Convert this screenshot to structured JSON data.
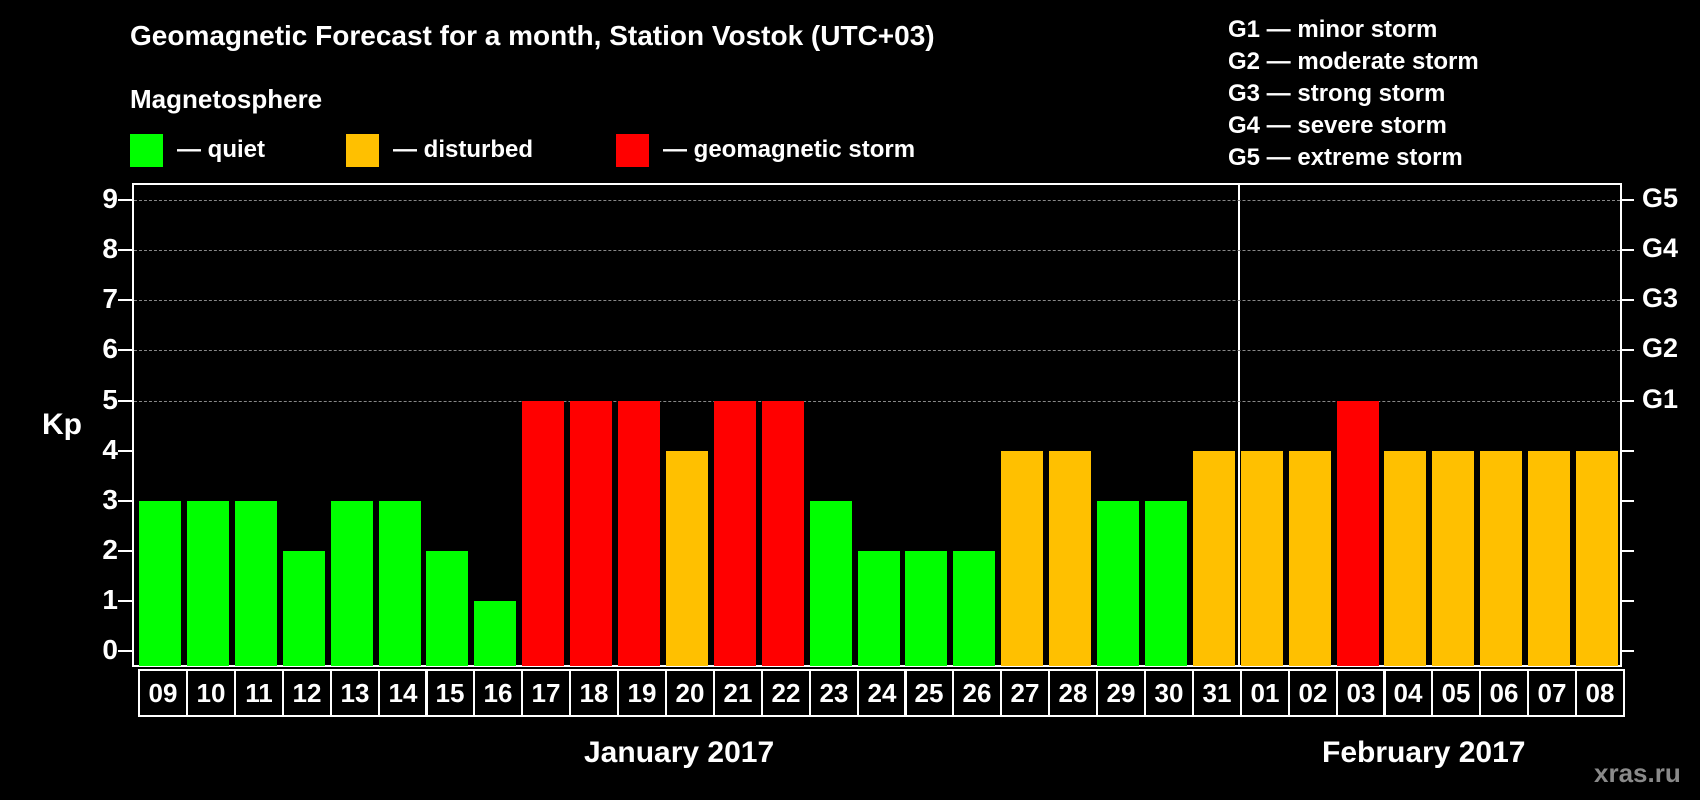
{
  "header": {
    "title": "Geomagnetic Forecast for a month, Station Vostok (UTC+03)",
    "subtitle": "Magnetosphere"
  },
  "legend": {
    "items": [
      {
        "label": "— quiet",
        "color": "#00ff00"
      },
      {
        "label": "— disturbed",
        "color": "#ffc000"
      },
      {
        "label": "— geomagnetic storm",
        "color": "#ff0000"
      }
    ]
  },
  "storm_scale": {
    "items": [
      "G1 — minor storm",
      "G2 — moderate storm",
      "G3 — strong storm",
      "G4 — severe storm",
      "G5 — extreme storm"
    ]
  },
  "axes": {
    "ylabel": "Kp",
    "yticks": [
      "0",
      "1",
      "2",
      "3",
      "4",
      "5",
      "6",
      "7",
      "8",
      "9"
    ],
    "right_labels": {
      "5": "G1",
      "6": "G2",
      "7": "G3",
      "8": "G4",
      "9": "G5"
    },
    "months": [
      "January 2017",
      "February 2017"
    ]
  },
  "watermark": "xras.ru",
  "chart_data": {
    "type": "bar",
    "title": "Geomagnetic Forecast for a month, Station Vostok (UTC+03)",
    "xlabel": "",
    "ylabel": "Kp",
    "ylim": [
      0,
      9
    ],
    "grid": true,
    "categories": [
      "09",
      "10",
      "11",
      "12",
      "13",
      "14",
      "15",
      "16",
      "17",
      "18",
      "19",
      "20",
      "21",
      "22",
      "23",
      "24",
      "25",
      "26",
      "27",
      "28",
      "29",
      "30",
      "31",
      "01",
      "02",
      "03",
      "04",
      "05",
      "06",
      "07",
      "08"
    ],
    "month_groups": [
      {
        "label": "January 2017",
        "from": "09",
        "to": "31"
      },
      {
        "label": "February 2017",
        "from": "01",
        "to": "08"
      }
    ],
    "values": [
      3,
      3,
      3,
      2,
      3,
      3,
      2,
      1,
      5,
      5,
      5,
      4,
      5,
      5,
      3,
      2,
      2,
      2,
      4,
      4,
      3,
      3,
      4,
      4,
      4,
      5,
      4,
      4,
      4,
      4,
      4
    ],
    "status": [
      "quiet",
      "quiet",
      "quiet",
      "quiet",
      "quiet",
      "quiet",
      "quiet",
      "quiet",
      "storm",
      "storm",
      "storm",
      "disturbed",
      "storm",
      "storm",
      "quiet",
      "quiet",
      "quiet",
      "quiet",
      "disturbed",
      "disturbed",
      "quiet",
      "quiet",
      "disturbed",
      "disturbed",
      "disturbed",
      "storm",
      "disturbed",
      "disturbed",
      "disturbed",
      "disturbed",
      "disturbed"
    ],
    "colors": {
      "quiet": "#00ff00",
      "disturbed": "#ffc000",
      "storm": "#ff0000"
    },
    "right_axis": {
      "5": "G1",
      "6": "G2",
      "7": "G3",
      "8": "G4",
      "9": "G5"
    },
    "legend": [
      "quiet",
      "disturbed",
      "geomagnetic storm"
    ]
  }
}
